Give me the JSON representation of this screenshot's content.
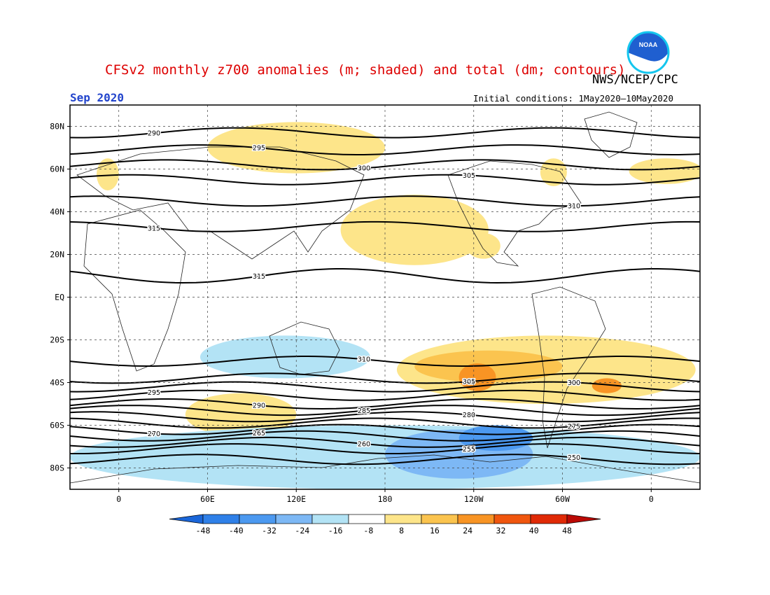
{
  "header": {
    "title": "CFSv2 monthly z700 anomalies (m; shaded) and total (dm; contours)",
    "org": "NWS/NCEP/CPC",
    "period": "Sep 2020",
    "initial_conditions": "Initial conditions: 1May2020–10May2020",
    "logo_text": "NOAA"
  },
  "axes": {
    "lat_ticks": [
      "80N",
      "60N",
      "40N",
      "20N",
      "EQ",
      "20S",
      "40S",
      "60S",
      "80S"
    ],
    "lat_values": [
      80,
      60,
      40,
      20,
      0,
      -20,
      -40,
      -60,
      -80
    ],
    "lon_ticks": [
      "0",
      "60E",
      "120E",
      "180",
      "120W",
      "60W",
      "0"
    ],
    "lon_values": [
      0,
      60,
      120,
      180,
      240,
      300,
      360
    ],
    "lon_range": [
      -33,
      393
    ],
    "lat_range": [
      -90,
      90
    ]
  },
  "colorbar": {
    "labels": [
      "-48",
      "-40",
      "-32",
      "-24",
      "-16",
      "-8",
      "8",
      "16",
      "24",
      "32",
      "40",
      "48"
    ],
    "colors": [
      "#1a66d9",
      "#2f80e8",
      "#4c99f0",
      "#7db8f5",
      "#b3e3f5",
      "#ffffff",
      "#fde58a",
      "#fbc44f",
      "#f89424",
      "#f0560e",
      "#e02a06",
      "#bb0a05"
    ]
  },
  "anomaly_regions": [
    {
      "sign": "pos",
      "level": 8,
      "lon": [
        60,
        180
      ],
      "lat": [
        58,
        82
      ]
    },
    {
      "sign": "pos",
      "level": 8,
      "lon": [
        -15,
        0
      ],
      "lat": [
        50,
        65
      ]
    },
    {
      "sign": "pos",
      "level": 8,
      "lon": [
        150,
        250
      ],
      "lat": [
        15,
        48
      ]
    },
    {
      "sign": "pos",
      "level": 8,
      "lon": [
        285,
        303
      ],
      "lat": [
        52,
        65
      ]
    },
    {
      "sign": "pos",
      "level": 8,
      "lon": [
        345,
        395
      ],
      "lat": [
        53,
        65
      ]
    },
    {
      "sign": "pos",
      "level": 8,
      "lon": [
        235,
        258
      ],
      "lat": [
        18,
        30
      ]
    },
    {
      "sign": "pos",
      "level": 8,
      "lon": [
        45,
        120
      ],
      "lat": [
        -45,
        -65
      ]
    },
    {
      "sign": "pos",
      "level": 8,
      "lon": [
        188,
        390
      ],
      "lat": [
        -18,
        -50
      ]
    },
    {
      "sign": "pos",
      "level": 16,
      "lon": [
        200,
        300
      ],
      "lat": [
        -25,
        -40
      ]
    },
    {
      "sign": "pos",
      "level": 24,
      "lon": [
        230,
        255
      ],
      "lat": [
        -31,
        -44
      ]
    },
    {
      "sign": "pos",
      "level": 24,
      "lon": [
        320,
        340
      ],
      "lat": [
        -38,
        -45
      ]
    },
    {
      "sign": "neg",
      "level": -8,
      "lon": [
        -33,
        393
      ],
      "lat": [
        -60,
        -90
      ]
    },
    {
      "sign": "neg",
      "level": -8,
      "lon": [
        55,
        170
      ],
      "lat": [
        -18,
        -38
      ]
    },
    {
      "sign": "neg",
      "level": -16,
      "lon": [
        180,
        280
      ],
      "lat": [
        -62,
        -85
      ]
    },
    {
      "sign": "neg",
      "level": -24,
      "lon": [
        230,
        280
      ],
      "lat": [
        -60,
        -72
      ]
    }
  ],
  "contours": [
    {
      "label": "290",
      "lat": 77
    },
    {
      "label": "295",
      "lat": 69
    },
    {
      "label": "300",
      "lat": 62
    },
    {
      "label": "305",
      "lat": 55
    },
    {
      "label": "310",
      "lat": 45
    },
    {
      "label": "315",
      "lat": 33
    },
    {
      "label": "315",
      "lat": 10
    },
    {
      "label": "310",
      "lat": -30
    },
    {
      "label": "305",
      "lat": -38
    },
    {
      "label": "300",
      "lat": -42
    },
    {
      "label": "295",
      "lat": -46
    },
    {
      "label": "290",
      "lat": -50
    },
    {
      "label": "285",
      "lat": -53
    },
    {
      "label": "280",
      "lat": -56
    },
    {
      "label": "275",
      "lat": -59
    },
    {
      "label": "270",
      "lat": -62
    },
    {
      "label": "265",
      "lat": -65
    },
    {
      "label": "260",
      "lat": -68
    },
    {
      "label": "255",
      "lat": -71
    },
    {
      "label": "250",
      "lat": -76
    }
  ]
}
